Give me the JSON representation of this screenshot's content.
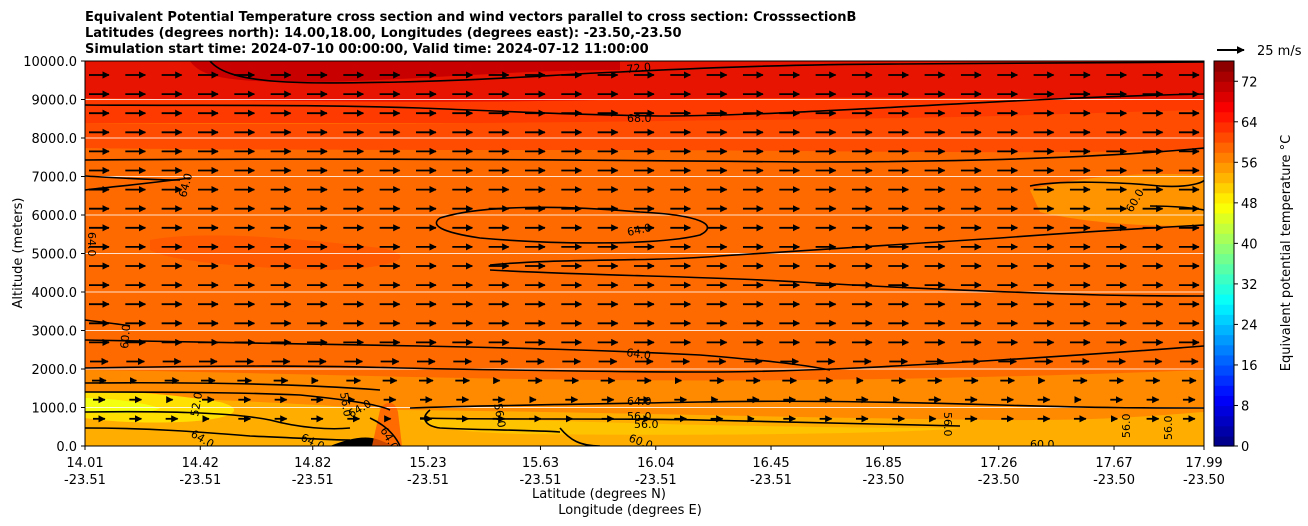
{
  "chart_data": {
    "type": "heatmap",
    "title_lines": [
      "Equivalent Potential Temperature cross section and wind vectors parallel to cross section: CrosssectionB",
      "Latitudes (degrees north): 14.00,18.00, Longitudes (degrees east): -23.50,-23.50",
      "Simulation start time: 2024-07-10 00:00:00, Valid time: 2024-07-12 11:00:00"
    ],
    "ylabel": "Altitude (meters)",
    "xlabel_lines": [
      "Latitude (degrees N)",
      "Longitude (degrees E)"
    ],
    "ylim": [
      0,
      10000
    ],
    "y_ticks": [
      "0.0",
      "1000.0",
      "2000.0",
      "3000.0",
      "4000.0",
      "5000.0",
      "6000.0",
      "7000.0",
      "8000.0",
      "9000.0",
      "10000.0"
    ],
    "x_ticks": [
      {
        "lat": "14.01",
        "lon": "-23.51"
      },
      {
        "lat": "14.42",
        "lon": "-23.51"
      },
      {
        "lat": "14.82",
        "lon": "-23.51"
      },
      {
        "lat": "15.23",
        "lon": "-23.51"
      },
      {
        "lat": "15.63",
        "lon": "-23.51"
      },
      {
        "lat": "16.04",
        "lon": "-23.51"
      },
      {
        "lat": "16.45",
        "lon": "-23.51"
      },
      {
        "lat": "16.85",
        "lon": "-23.50"
      },
      {
        "lat": "17.26",
        "lon": "-23.50"
      },
      {
        "lat": "17.67",
        "lon": "-23.50"
      },
      {
        "lat": "17.99",
        "lon": "-23.50"
      }
    ],
    "colorbar": {
      "label": "Equivalent potential temperature $^\\circ$C",
      "label_display": "Equivalent potential temperature °C",
      "ticks": [
        "0",
        "8",
        "16",
        "24",
        "32",
        "40",
        "48",
        "56",
        "64",
        "72"
      ],
      "range": [
        0,
        76
      ]
    },
    "quiver_key": "25 m/s",
    "contour_labels": [
      "72.0",
      "68.0",
      "64.0",
      "60.0",
      "56.0",
      "52.0"
    ]
  }
}
